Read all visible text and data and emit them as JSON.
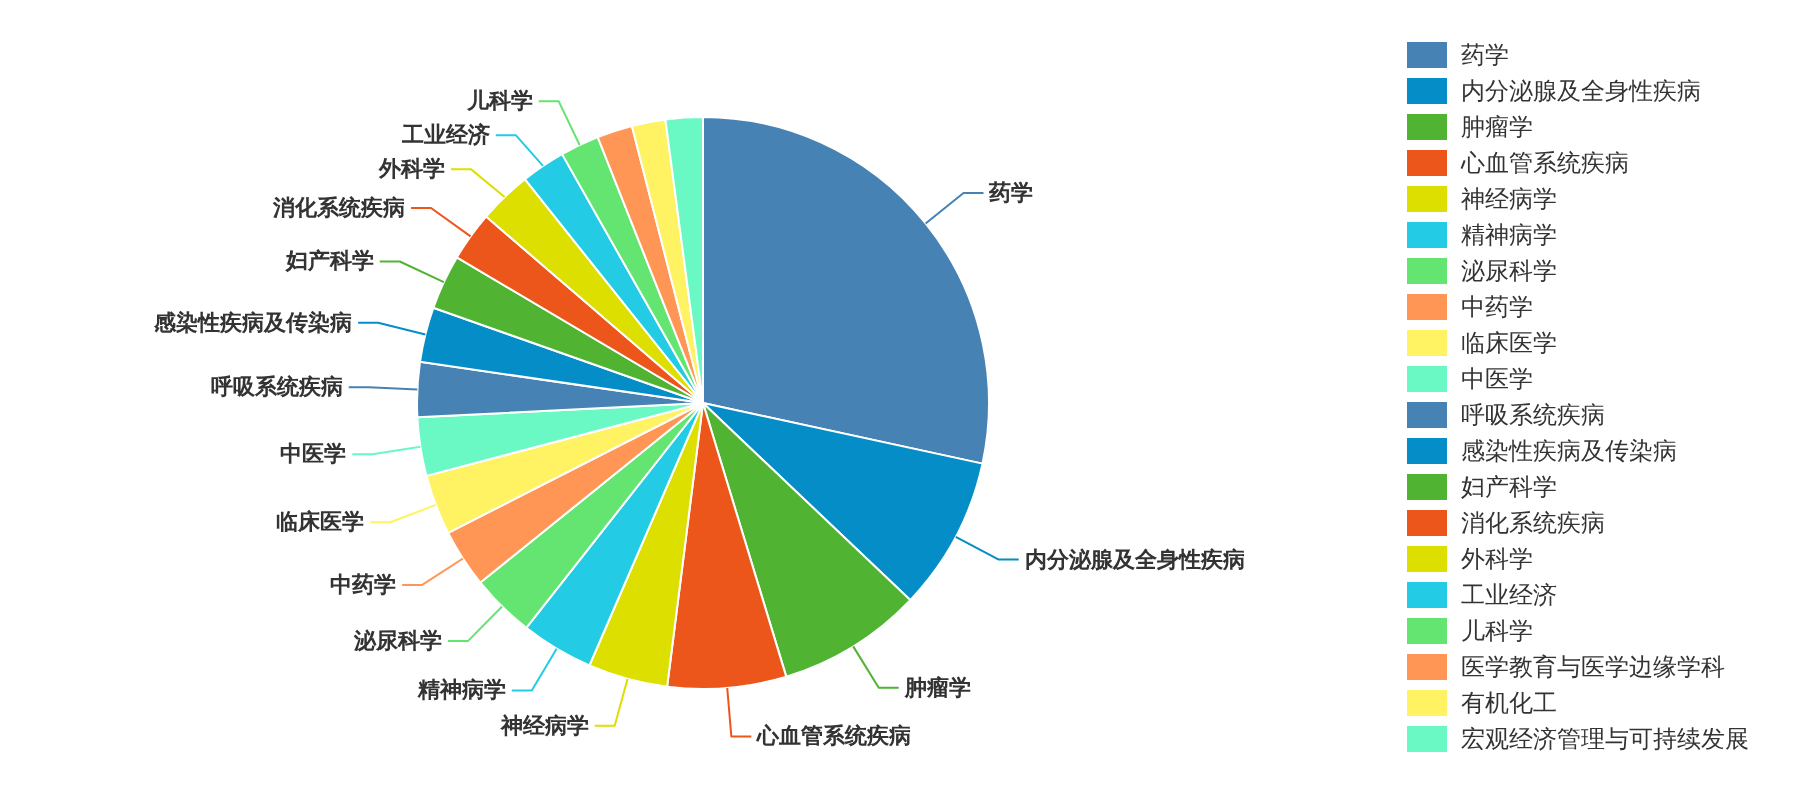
{
  "chart_data": {
    "type": "pie",
    "categories": [
      "药学",
      "内分泌腺及全身性疾病",
      "肿瘤学",
      "心血管系统疾病",
      "神经病学",
      "精神病学",
      "泌尿科学",
      "中药学",
      "临床医学",
      "中医学",
      "呼吸系统疾病",
      "感染性疾病及传染病",
      "妇产科学",
      "消化系统疾病",
      "外科学",
      "工业经济",
      "儿科学",
      "医学教育与医学边缘学科",
      "有机化工",
      "宏观经济管理与可持续发展"
    ],
    "values": [
      28.4,
      8.7,
      8.2,
      6.7,
      4.5,
      4.1,
      3.6,
      3.3,
      3.4,
      3.3,
      3.1,
      3.1,
      3.1,
      2.8,
      3.0,
      2.5,
      2.2,
      2.0,
      1.9,
      2.1
    ],
    "colors": [
      "#4682b4",
      "#058dc7",
      "#50b432",
      "#ed561b",
      "#dddf00",
      "#24cbe5",
      "#64e572",
      "#ff9655",
      "#fff263",
      "#6af9c4",
      "#4682b4",
      "#058dc7",
      "#50b432",
      "#ed561b",
      "#dddf00",
      "#24cbe5",
      "#64e572",
      "#ff9655",
      "#fff263",
      "#6af9c4"
    ],
    "legend": "right"
  }
}
